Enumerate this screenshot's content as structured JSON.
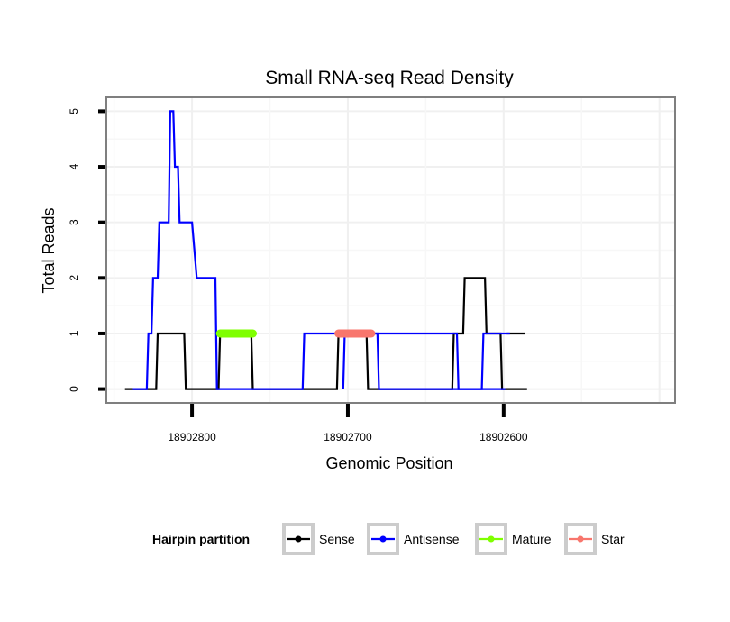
{
  "chart_data": {
    "type": "line",
    "title": "Small RNA-seq Read Density",
    "xlabel": "Genomic Position",
    "ylabel": "Total Reads",
    "x_reversed": true,
    "xlim": [
      18902855,
      18902490
    ],
    "ylim": [
      -0.25,
      5.25
    ],
    "x_ticks": [
      18902800,
      18902700,
      18902600
    ],
    "x_tick_labels": [
      "18902800",
      "18902700",
      "18902600"
    ],
    "y_ticks": [
      0,
      1,
      2,
      3,
      4,
      5
    ],
    "y_tick_labels": [
      "0",
      "1",
      "2",
      "3",
      "4",
      "5"
    ],
    "grid": true,
    "legend": {
      "title": "Hairpin partition",
      "position": "bottom",
      "entries": [
        "Sense",
        "Antisense",
        "Mature",
        "Star"
      ]
    },
    "series": [
      {
        "name": "Antisense",
        "color": "#0000ff",
        "style": "step",
        "x": [
          18902838,
          18902829,
          18902828,
          18902826,
          18902825,
          18902822,
          18902821,
          18902815,
          18902814,
          18902812,
          18902811,
          18902809,
          18902808,
          18902800,
          18902797,
          18902785,
          18902784,
          18902750,
          18902751,
          18902729,
          18902728,
          18902630,
          18902629,
          18902614,
          18902613,
          18902596
        ],
        "y": [
          0,
          0,
          1,
          1,
          2,
          2,
          3,
          3,
          5,
          5,
          4,
          4,
          3,
          3,
          2,
          2,
          0,
          0,
          0,
          0,
          1,
          1,
          0,
          0,
          1,
          1
        ]
      },
      {
        "name": "Antisense_tail",
        "color": "#0000ff",
        "style": "step",
        "x": [
          18902703,
          18902702,
          18902681,
          18902680,
          18902599
        ],
        "y": [
          0,
          1,
          1,
          0,
          0
        ]
      },
      {
        "name": "Sense",
        "color": "#000000",
        "style": "step",
        "x": [
          18902843,
          18902823,
          18902822,
          18902805,
          18902804,
          18902783,
          18902782,
          18902762,
          18902761,
          18902707,
          18902706,
          18902688,
          18902687,
          18902633,
          18902632,
          18902626,
          18902625,
          18902612,
          18902611,
          18902602,
          18902601,
          18902599,
          18902598,
          18902585
        ],
        "y": [
          0,
          0,
          1,
          1,
          0,
          0,
          1,
          1,
          0,
          0,
          1,
          1,
          0,
          0,
          1,
          1,
          2,
          2,
          1,
          1,
          0,
          0,
          0,
          0
        ]
      },
      {
        "name": "Sense_tail",
        "color": "#000000",
        "style": "step",
        "x": [
          18902598,
          18902586
        ],
        "y": [
          1,
          1
        ]
      },
      {
        "name": "Mature",
        "color": "#7fff00",
        "style": "segment",
        "x": [
          18902782,
          18902761
        ],
        "y": [
          1,
          1
        ]
      },
      {
        "name": "Star",
        "color": "#f8766d",
        "style": "segment",
        "x": [
          18902706,
          18902685
        ],
        "y": [
          1,
          1
        ]
      }
    ]
  },
  "legend_items": [
    {
      "label": "Sense",
      "color": "#000000"
    },
    {
      "label": "Antisense",
      "color": "#0000ff"
    },
    {
      "label": "Mature",
      "color": "#7fff00"
    },
    {
      "label": "Star",
      "color": "#f8766d"
    }
  ]
}
